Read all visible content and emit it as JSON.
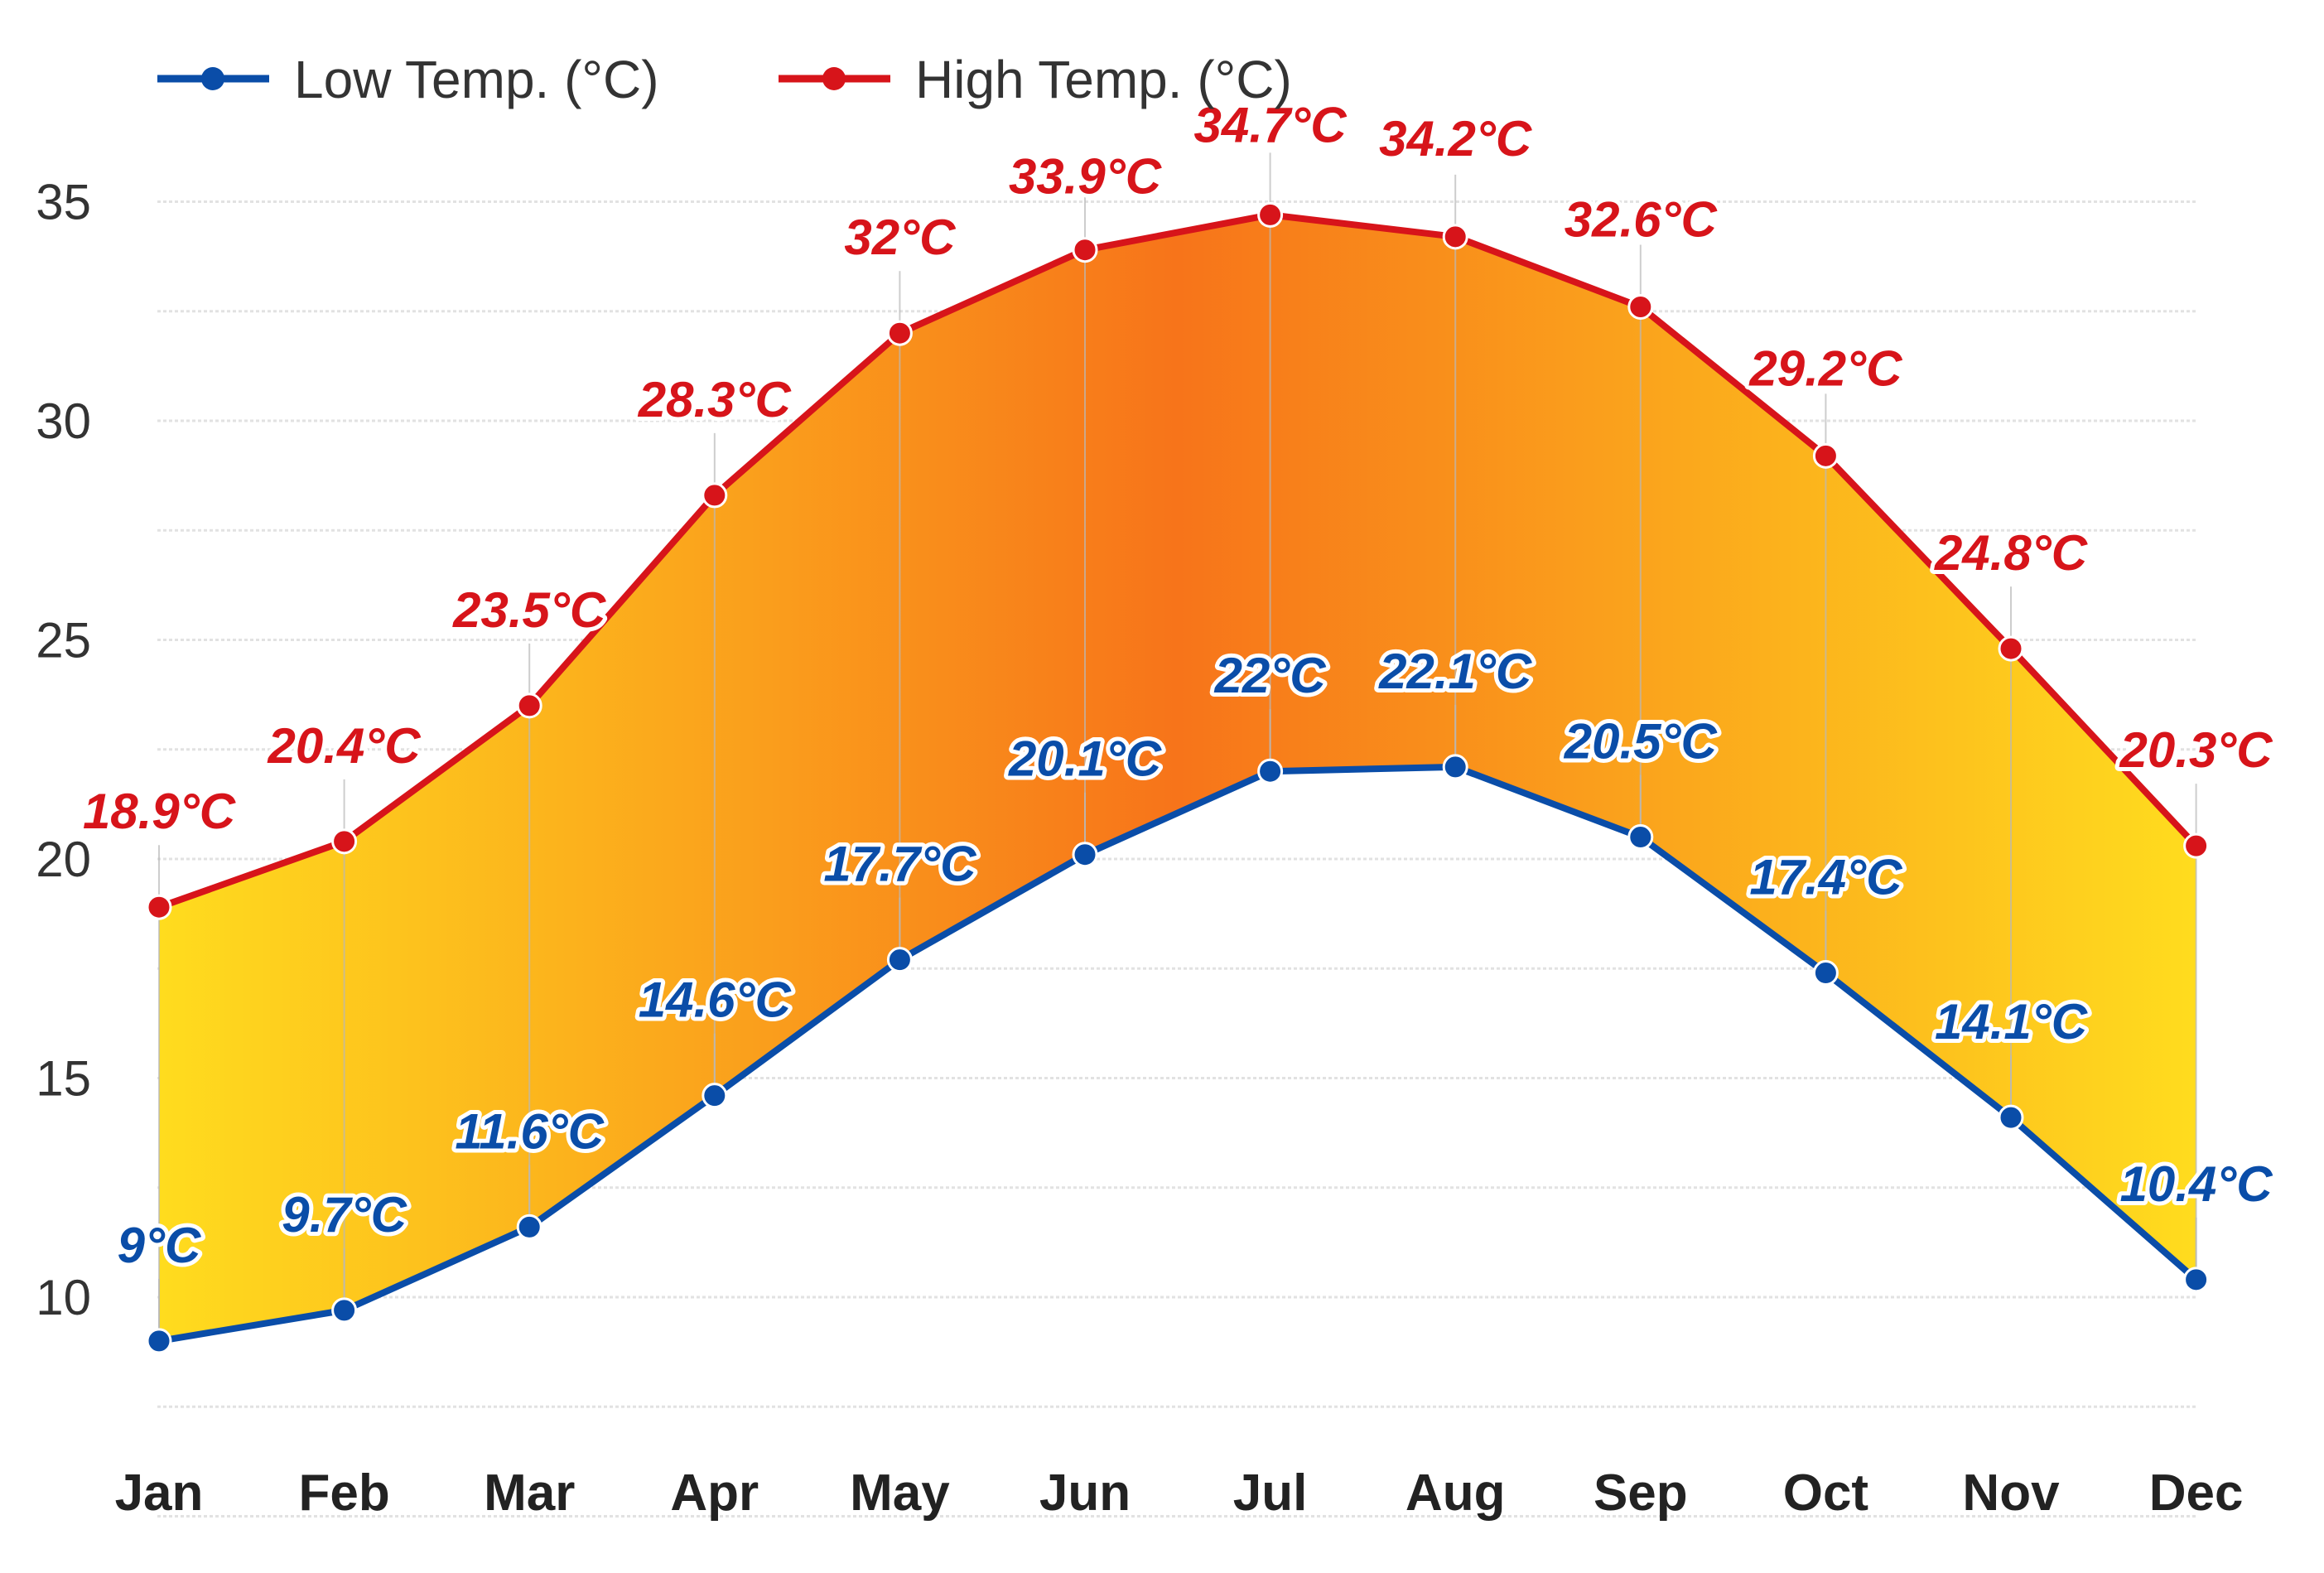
{
  "chart_data": {
    "type": "line",
    "title": "",
    "xlabel": "",
    "ylabel": "",
    "categories": [
      "Jan",
      "Feb",
      "Mar",
      "Apr",
      "May",
      "Jun",
      "Jul",
      "Aug",
      "Sep",
      "Oct",
      "Nov",
      "Dec"
    ],
    "series": [
      {
        "name": "Low Temp. (°C)",
        "color": "#0a4da8",
        "values": [
          9,
          9.7,
          11.6,
          14.6,
          17.7,
          20.1,
          22,
          22.1,
          20.5,
          17.4,
          14.1,
          10.4
        ],
        "labels": [
          "9°C",
          "9.7°C",
          "11.6°C",
          "14.6°C",
          "17.7°C",
          "20.1°C",
          "22°C",
          "22.1°C",
          "20.5°C",
          "17.4°C",
          "14.1°C",
          "10.4°C"
        ]
      },
      {
        "name": "High Temp. (°C)",
        "color": "#d7141a",
        "values": [
          18.9,
          20.4,
          23.5,
          28.3,
          32,
          33.9,
          34.7,
          34.2,
          32.6,
          29.2,
          24.8,
          20.3
        ],
        "labels": [
          "18.9°C",
          "20.4°C",
          "23.5°C",
          "28.3°C",
          "32°C",
          "33.9°C",
          "34.7°C",
          "34.2°C",
          "32.6°C",
          "29.2°C",
          "24.8°C",
          "20.3°C"
        ]
      }
    ],
    "range_fill": {
      "edge_color": "#ffdc1e",
      "center_color": "#f7741a"
    },
    "yticks": [
      "35",
      "30",
      "25",
      "20",
      "15",
      "10"
    ],
    "ylim": [
      5,
      35
    ],
    "grid": true,
    "legend": "top-left"
  }
}
